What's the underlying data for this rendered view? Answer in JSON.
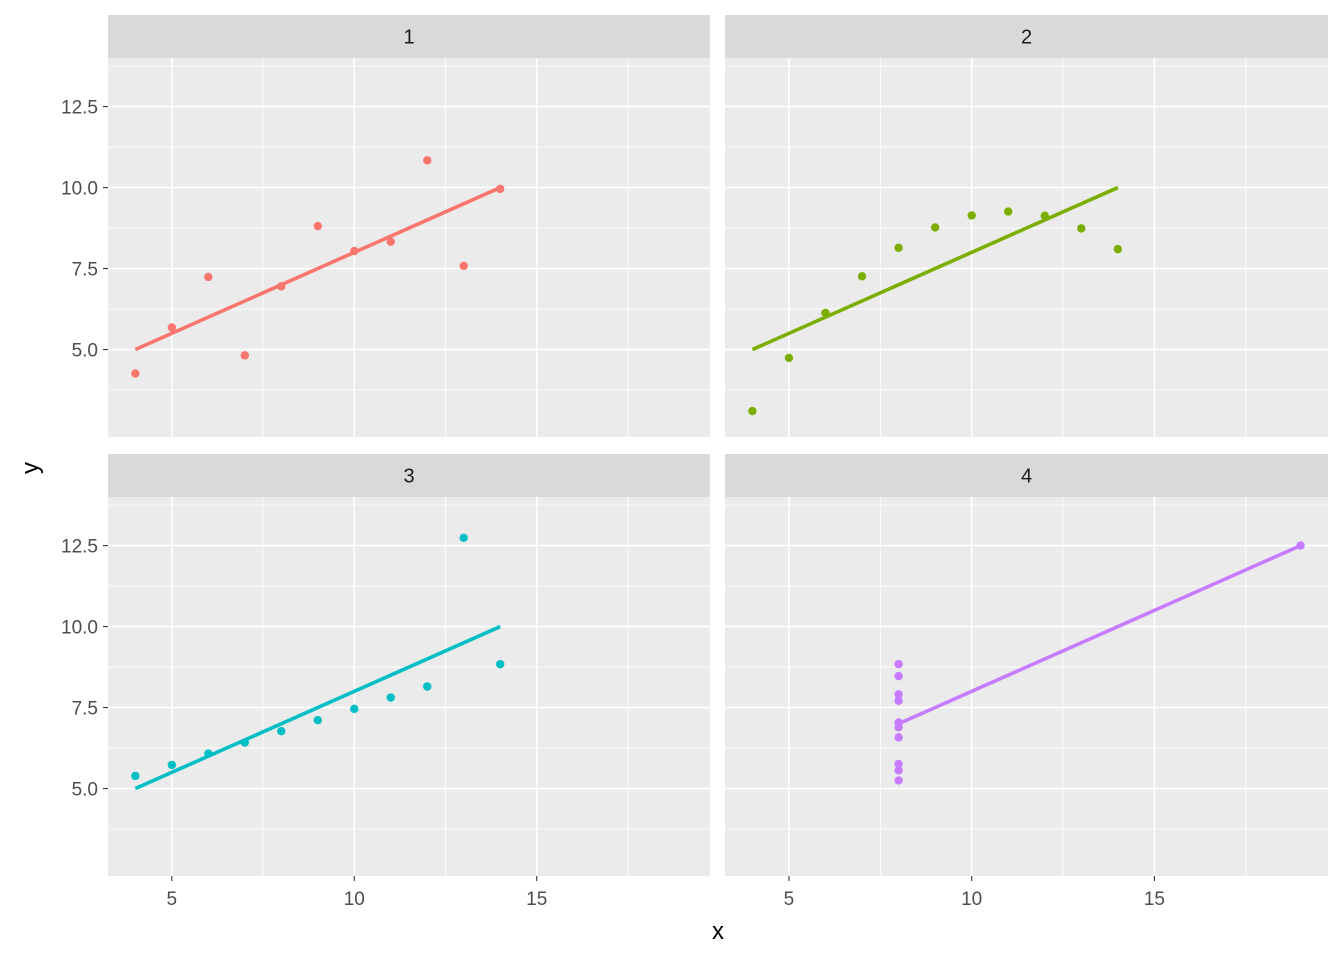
{
  "chart_data": {
    "type": "scatter",
    "facets": [
      "1",
      "2",
      "3",
      "4"
    ],
    "xlabel": "x",
    "ylabel": "y",
    "xlim": [
      3.25,
      19.75
    ],
    "ylim": [
      2.3,
      14.0
    ],
    "x_ticks": [
      5,
      10,
      15
    ],
    "y_ticks": [
      5.0,
      7.5,
      10.0,
      12.5
    ],
    "x_tick_labels": [
      "5",
      "10",
      "15"
    ],
    "y_tick_labels": [
      "5.0",
      "7.5",
      "10.0",
      "12.5"
    ],
    "grid": true,
    "legend": "none",
    "series": [
      {
        "facet": "1",
        "color": "#F8766D",
        "points": [
          [
            10,
            8.04
          ],
          [
            8,
            6.95
          ],
          [
            13,
            7.58
          ],
          [
            9,
            8.81
          ],
          [
            11,
            8.33
          ],
          [
            14,
            9.96
          ],
          [
            6,
            7.24
          ],
          [
            4,
            4.26
          ],
          [
            12,
            10.84
          ],
          [
            7,
            4.82
          ],
          [
            5,
            5.68
          ]
        ],
        "fit_line": [
          [
            4,
            5.0
          ],
          [
            14,
            10.0
          ]
        ]
      },
      {
        "facet": "2",
        "color": "#7CAE00",
        "points": [
          [
            10,
            9.14
          ],
          [
            8,
            8.14
          ],
          [
            13,
            8.74
          ],
          [
            9,
            8.77
          ],
          [
            11,
            9.26
          ],
          [
            14,
            8.1
          ],
          [
            6,
            6.13
          ],
          [
            4,
            3.1
          ],
          [
            12,
            9.13
          ],
          [
            7,
            7.26
          ],
          [
            5,
            4.74
          ]
        ],
        "fit_line": [
          [
            4,
            5.0
          ],
          [
            14,
            10.0
          ]
        ]
      },
      {
        "facet": "3",
        "color": "#00BFC4",
        "points": [
          [
            10,
            7.46
          ],
          [
            8,
            6.77
          ],
          [
            13,
            12.74
          ],
          [
            9,
            7.11
          ],
          [
            11,
            7.81
          ],
          [
            14,
            8.84
          ],
          [
            6,
            6.08
          ],
          [
            4,
            5.39
          ],
          [
            12,
            8.15
          ],
          [
            7,
            6.42
          ],
          [
            5,
            5.73
          ]
        ],
        "fit_line": [
          [
            4,
            5.0
          ],
          [
            14,
            10.0
          ]
        ]
      },
      {
        "facet": "4",
        "color": "#C77CFF",
        "points": [
          [
            8,
            6.58
          ],
          [
            8,
            5.76
          ],
          [
            8,
            7.71
          ],
          [
            8,
            8.84
          ],
          [
            8,
            8.47
          ],
          [
            8,
            7.04
          ],
          [
            8,
            5.25
          ],
          [
            19,
            12.5
          ],
          [
            8,
            5.56
          ],
          [
            8,
            7.91
          ],
          [
            8,
            6.89
          ]
        ],
        "fit_line": [
          [
            8,
            7.0
          ],
          [
            19,
            12.5
          ]
        ]
      }
    ]
  }
}
